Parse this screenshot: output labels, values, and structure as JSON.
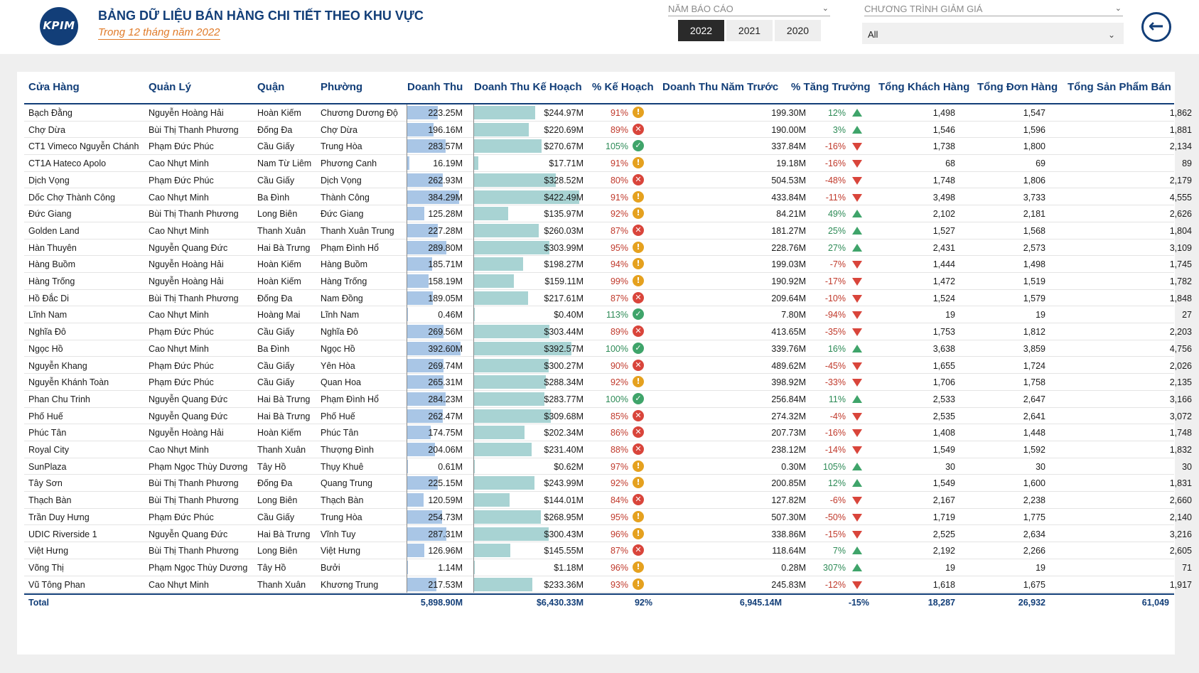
{
  "header": {
    "logo_text": "KPIM",
    "title": "BẢNG DỮ LIỆU BÁN HÀNG CHI TIẾT THEO KHU VỰC",
    "subtitle": "Trong 12 tháng năm 2022",
    "brand_color": "#123e78",
    "accent_color": "#e07b2a"
  },
  "slicers": {
    "year_label": "NĂM BÁO CÁO",
    "years": [
      "2022",
      "2021",
      "2020"
    ],
    "selected_year": "2022",
    "discount_label": "CHƯƠNG TRÌNH GIẢM GIÁ",
    "discount_value": "All"
  },
  "back_button_icon": "arrow-left-circle-icon",
  "table": {
    "columns": [
      "Cửa Hàng",
      "Quản Lý",
      "Quận",
      "Phường",
      "Doanh Thu",
      "Doanh Thu Kế Hoạch",
      "% Kế Hoạch",
      "Doanh Thu Năm Trước",
      "% Tăng Trưởng",
      "Tổng Khách Hàng",
      "Tổng Đơn Hàng",
      "Tổng Sản Phẩm Bán"
    ],
    "rows": [
      {
        "store": "Bạch Đằng",
        "manager": "Nguyễn Hoàng Hải",
        "district": "Hoàn Kiếm",
        "ward": "Chương Dương Độ",
        "revenue": "223.25M",
        "revenue_value": 223.25,
        "plan": "$244.97M",
        "plan_value": 244.97,
        "plan_pct": "91%",
        "plan_status": "warn",
        "prev": "199.30M",
        "growth": "12%",
        "growth_dir": "up",
        "customers": "1,498",
        "orders": "1,547",
        "products": "1,862"
      },
      {
        "store": "Chợ Dừa",
        "manager": "Bùi Thị Thanh Phương",
        "district": "Đống Đa",
        "ward": "Chợ Dừa",
        "revenue": "196.16M",
        "revenue_value": 196.16,
        "plan": "$220.69M",
        "plan_value": 220.69,
        "plan_pct": "89%",
        "plan_status": "bad",
        "prev": "190.00M",
        "growth": "3%",
        "growth_dir": "up",
        "customers": "1,546",
        "orders": "1,596",
        "products": "1,881"
      },
      {
        "store": "CT1 Vimeco Nguyễn Chánh",
        "manager": "Phạm Đức Phúc",
        "district": "Cầu Giấy",
        "ward": "Trung Hòa",
        "revenue": "283.57M",
        "revenue_value": 283.57,
        "plan": "$270.67M",
        "plan_value": 270.67,
        "plan_pct": "105%",
        "plan_status": "ok",
        "prev": "337.84M",
        "growth": "-16%",
        "growth_dir": "down",
        "customers": "1,738",
        "orders": "1,800",
        "products": "2,134"
      },
      {
        "store": "CT1A Hateco Apolo",
        "manager": "Cao Nhựt Minh",
        "district": "Nam Từ Liêm",
        "ward": "Phương Canh",
        "revenue": "16.19M",
        "revenue_value": 16.19,
        "plan": "$17.71M",
        "plan_value": 17.71,
        "plan_pct": "91%",
        "plan_status": "warn",
        "prev": "19.18M",
        "growth": "-16%",
        "growth_dir": "down",
        "customers": "68",
        "orders": "69",
        "products": "89"
      },
      {
        "store": "Dịch Vọng",
        "manager": "Phạm Đức Phúc",
        "district": "Cầu Giấy",
        "ward": "Dịch Vọng",
        "revenue": "262.93M",
        "revenue_value": 262.93,
        "plan": "$328.52M",
        "plan_value": 328.52,
        "plan_pct": "80%",
        "plan_status": "bad",
        "prev": "504.53M",
        "growth": "-48%",
        "growth_dir": "down",
        "customers": "1,748",
        "orders": "1,806",
        "products": "2,179"
      },
      {
        "store": "Dốc Chợ Thành Công",
        "manager": "Cao Nhựt Minh",
        "district": "Ba Đình",
        "ward": "Thành Công",
        "revenue": "384.29M",
        "revenue_value": 384.29,
        "plan": "$422.49M",
        "plan_value": 422.49,
        "plan_pct": "91%",
        "plan_status": "warn",
        "prev": "433.84M",
        "growth": "-11%",
        "growth_dir": "down",
        "customers": "3,498",
        "orders": "3,733",
        "products": "4,555"
      },
      {
        "store": "Đức Giang",
        "manager": "Bùi Thị Thanh Phương",
        "district": "Long Biên",
        "ward": "Đức Giang",
        "revenue": "125.28M",
        "revenue_value": 125.28,
        "plan": "$135.97M",
        "plan_value": 135.97,
        "plan_pct": "92%",
        "plan_status": "warn",
        "prev": "84.21M",
        "growth": "49%",
        "growth_dir": "up",
        "customers": "2,102",
        "orders": "2,181",
        "products": "2,626"
      },
      {
        "store": "Golden Land",
        "manager": "Cao Nhựt Minh",
        "district": "Thanh Xuân",
        "ward": "Thanh Xuân Trung",
        "revenue": "227.28M",
        "revenue_value": 227.28,
        "plan": "$260.03M",
        "plan_value": 260.03,
        "plan_pct": "87%",
        "plan_status": "bad",
        "prev": "181.27M",
        "growth": "25%",
        "growth_dir": "up",
        "customers": "1,527",
        "orders": "1,568",
        "products": "1,804"
      },
      {
        "store": "Hàn Thuyên",
        "manager": "Nguyễn Quang Đức",
        "district": "Hai Bà Trưng",
        "ward": "Phạm Đình Hổ",
        "revenue": "289.80M",
        "revenue_value": 289.8,
        "plan": "$303.99M",
        "plan_value": 303.99,
        "plan_pct": "95%",
        "plan_status": "warn",
        "prev": "228.76M",
        "growth": "27%",
        "growth_dir": "up",
        "customers": "2,431",
        "orders": "2,573",
        "products": "3,109"
      },
      {
        "store": "Hàng Buồm",
        "manager": "Nguyễn Hoàng Hải",
        "district": "Hoàn Kiếm",
        "ward": "Hàng Buồm",
        "revenue": "185.71M",
        "revenue_value": 185.71,
        "plan": "$198.27M",
        "plan_value": 198.27,
        "plan_pct": "94%",
        "plan_status": "warn",
        "prev": "199.03M",
        "growth": "-7%",
        "growth_dir": "down",
        "customers": "1,444",
        "orders": "1,498",
        "products": "1,745"
      },
      {
        "store": "Hàng Trống",
        "manager": "Nguyễn Hoàng Hải",
        "district": "Hoàn Kiếm",
        "ward": "Hàng Trống",
        "revenue": "158.19M",
        "revenue_value": 158.19,
        "plan": "$159.11M",
        "plan_value": 159.11,
        "plan_pct": "99%",
        "plan_status": "warn",
        "prev": "190.92M",
        "growth": "-17%",
        "growth_dir": "down",
        "customers": "1,472",
        "orders": "1,519",
        "products": "1,782"
      },
      {
        "store": "Hồ Đắc Di",
        "manager": "Bùi Thị Thanh Phương",
        "district": "Đống Đa",
        "ward": "Nam Đồng",
        "revenue": "189.05M",
        "revenue_value": 189.05,
        "plan": "$217.61M",
        "plan_value": 217.61,
        "plan_pct": "87%",
        "plan_status": "bad",
        "prev": "209.64M",
        "growth": "-10%",
        "growth_dir": "down",
        "customers": "1,524",
        "orders": "1,579",
        "products": "1,848"
      },
      {
        "store": "Lĩnh Nam",
        "manager": "Cao Nhựt Minh",
        "district": "Hoàng Mai",
        "ward": "Lĩnh Nam",
        "revenue": "0.46M",
        "revenue_value": 0.46,
        "plan": "$0.40M",
        "plan_value": 0.4,
        "plan_pct": "113%",
        "plan_status": "ok",
        "prev": "7.80M",
        "growth": "-94%",
        "growth_dir": "down",
        "customers": "19",
        "orders": "19",
        "products": "27"
      },
      {
        "store": "Nghĩa Đô",
        "manager": "Phạm Đức Phúc",
        "district": "Cầu Giấy",
        "ward": "Nghĩa Đô",
        "revenue": "269.56M",
        "revenue_value": 269.56,
        "plan": "$303.44M",
        "plan_value": 303.44,
        "plan_pct": "89%",
        "plan_status": "bad",
        "prev": "413.65M",
        "growth": "-35%",
        "growth_dir": "down",
        "customers": "1,753",
        "orders": "1,812",
        "products": "2,203"
      },
      {
        "store": "Ngọc Hồ",
        "manager": "Cao Nhựt Minh",
        "district": "Ba Đình",
        "ward": "Ngọc Hồ",
        "revenue": "392.60M",
        "revenue_value": 392.6,
        "plan": "$392.57M",
        "plan_value": 392.57,
        "plan_pct": "100%",
        "plan_status": "ok",
        "prev": "339.76M",
        "growth": "16%",
        "growth_dir": "up",
        "customers": "3,638",
        "orders": "3,859",
        "products": "4,756"
      },
      {
        "store": "Nguyễn Khang",
        "manager": "Phạm Đức Phúc",
        "district": "Cầu Giấy",
        "ward": "Yên Hòa",
        "revenue": "269.74M",
        "revenue_value": 269.74,
        "plan": "$300.27M",
        "plan_value": 300.27,
        "plan_pct": "90%",
        "plan_status": "bad",
        "prev": "489.62M",
        "growth": "-45%",
        "growth_dir": "down",
        "customers": "1,655",
        "orders": "1,724",
        "products": "2,026"
      },
      {
        "store": "Nguyễn Khánh Toàn",
        "manager": "Phạm Đức Phúc",
        "district": "Cầu Giấy",
        "ward": "Quan Hoa",
        "revenue": "265.31M",
        "revenue_value": 265.31,
        "plan": "$288.34M",
        "plan_value": 288.34,
        "plan_pct": "92%",
        "plan_status": "warn",
        "prev": "398.92M",
        "growth": "-33%",
        "growth_dir": "down",
        "customers": "1,706",
        "orders": "1,758",
        "products": "2,135"
      },
      {
        "store": "Phan Chu Trinh",
        "manager": "Nguyễn Quang Đức",
        "district": "Hai Bà Trưng",
        "ward": "Phạm Đình Hổ",
        "revenue": "284.23M",
        "revenue_value": 284.23,
        "plan": "$283.77M",
        "plan_value": 283.77,
        "plan_pct": "100%",
        "plan_status": "ok",
        "prev": "256.84M",
        "growth": "11%",
        "growth_dir": "up",
        "customers": "2,533",
        "orders": "2,647",
        "products": "3,166"
      },
      {
        "store": "Phố Huế",
        "manager": "Nguyễn Quang Đức",
        "district": "Hai Bà Trưng",
        "ward": "Phố Huế",
        "revenue": "262.47M",
        "revenue_value": 262.47,
        "plan": "$309.68M",
        "plan_value": 309.68,
        "plan_pct": "85%",
        "plan_status": "bad",
        "prev": "274.32M",
        "growth": "-4%",
        "growth_dir": "down",
        "customers": "2,535",
        "orders": "2,641",
        "products": "3,072"
      },
      {
        "store": "Phúc Tân",
        "manager": "Nguyễn Hoàng Hải",
        "district": "Hoàn Kiếm",
        "ward": "Phúc Tân",
        "revenue": "174.75M",
        "revenue_value": 174.75,
        "plan": "$202.34M",
        "plan_value": 202.34,
        "plan_pct": "86%",
        "plan_status": "bad",
        "prev": "207.73M",
        "growth": "-16%",
        "growth_dir": "down",
        "customers": "1,408",
        "orders": "1,448",
        "products": "1,748"
      },
      {
        "store": "Royal City",
        "manager": "Cao Nhựt Minh",
        "district": "Thanh Xuân",
        "ward": "Thượng Đình",
        "revenue": "204.06M",
        "revenue_value": 204.06,
        "plan": "$231.40M",
        "plan_value": 231.4,
        "plan_pct": "88%",
        "plan_status": "bad",
        "prev": "238.12M",
        "growth": "-14%",
        "growth_dir": "down",
        "customers": "1,549",
        "orders": "1,592",
        "products": "1,832"
      },
      {
        "store": "SunPlaza",
        "manager": "Phạm Ngọc Thùy Dương",
        "district": "Tây Hồ",
        "ward": "Thụy Khuê",
        "revenue": "0.61M",
        "revenue_value": 0.61,
        "plan": "$0.62M",
        "plan_value": 0.62,
        "plan_pct": "97%",
        "plan_status": "warn",
        "prev": "0.30M",
        "growth": "105%",
        "growth_dir": "up",
        "customers": "30",
        "orders": "30",
        "products": "30"
      },
      {
        "store": "Tây Sơn",
        "manager": "Bùi Thị Thanh Phương",
        "district": "Đống Đa",
        "ward": "Quang Trung",
        "revenue": "225.15M",
        "revenue_value": 225.15,
        "plan": "$243.99M",
        "plan_value": 243.99,
        "plan_pct": "92%",
        "plan_status": "warn",
        "prev": "200.85M",
        "growth": "12%",
        "growth_dir": "up",
        "customers": "1,549",
        "orders": "1,600",
        "products": "1,831"
      },
      {
        "store": "Thạch Bàn",
        "manager": "Bùi Thị Thanh Phương",
        "district": "Long Biên",
        "ward": "Thạch Bàn",
        "revenue": "120.59M",
        "revenue_value": 120.59,
        "plan": "$144.01M",
        "plan_value": 144.01,
        "plan_pct": "84%",
        "plan_status": "bad",
        "prev": "127.82M",
        "growth": "-6%",
        "growth_dir": "down",
        "customers": "2,167",
        "orders": "2,238",
        "products": "2,660"
      },
      {
        "store": "Trần Duy Hưng",
        "manager": "Phạm Đức Phúc",
        "district": "Cầu Giấy",
        "ward": "Trung Hòa",
        "revenue": "254.73M",
        "revenue_value": 254.73,
        "plan": "$268.95M",
        "plan_value": 268.95,
        "plan_pct": "95%",
        "plan_status": "warn",
        "prev": "507.30M",
        "growth": "-50%",
        "growth_dir": "down",
        "customers": "1,719",
        "orders": "1,775",
        "products": "2,140"
      },
      {
        "store": "UDIC Riverside 1",
        "manager": "Nguyễn Quang Đức",
        "district": "Hai Bà Trưng",
        "ward": "Vĩnh Tuy",
        "revenue": "287.31M",
        "revenue_value": 287.31,
        "plan": "$300.43M",
        "plan_value": 300.43,
        "plan_pct": "96%",
        "plan_status": "warn",
        "prev": "338.86M",
        "growth": "-15%",
        "growth_dir": "down",
        "customers": "2,525",
        "orders": "2,634",
        "products": "3,216"
      },
      {
        "store": "Việt Hưng",
        "manager": "Bùi Thị Thanh Phương",
        "district": "Long Biên",
        "ward": "Việt Hưng",
        "revenue": "126.96M",
        "revenue_value": 126.96,
        "plan": "$145.55M",
        "plan_value": 145.55,
        "plan_pct": "87%",
        "plan_status": "bad",
        "prev": "118.64M",
        "growth": "7%",
        "growth_dir": "up",
        "customers": "2,192",
        "orders": "2,266",
        "products": "2,605"
      },
      {
        "store": "Võng Thị",
        "manager": "Phạm Ngọc Thùy Dương",
        "district": "Tây Hồ",
        "ward": "Bưởi",
        "revenue": "1.14M",
        "revenue_value": 1.14,
        "plan": "$1.18M",
        "plan_value": 1.18,
        "plan_pct": "96%",
        "plan_status": "warn",
        "prev": "0.28M",
        "growth": "307%",
        "growth_dir": "up",
        "customers": "19",
        "orders": "19",
        "products": "71"
      },
      {
        "store": "Vũ Tông Phan",
        "manager": "Cao Nhựt Minh",
        "district": "Thanh Xuân",
        "ward": "Khương Trung",
        "revenue": "217.53M",
        "revenue_value": 217.53,
        "plan": "$233.36M",
        "plan_value": 233.36,
        "plan_pct": "93%",
        "plan_status": "warn",
        "prev": "245.83M",
        "growth": "-12%",
        "growth_dir": "down",
        "customers": "1,618",
        "orders": "1,675",
        "products": "1,917"
      }
    ],
    "total": {
      "label": "Total",
      "revenue": "5,898.90M",
      "plan": "$6,430.33M",
      "plan_pct": "92%",
      "prev": "6,945.14M",
      "growth": "-15%",
      "customers": "18,287",
      "orders": "26,932",
      "products": "61,049"
    },
    "status_colors": {
      "warn": "#e5a11f",
      "bad": "#d9453b",
      "ok": "#3fa46a"
    }
  }
}
